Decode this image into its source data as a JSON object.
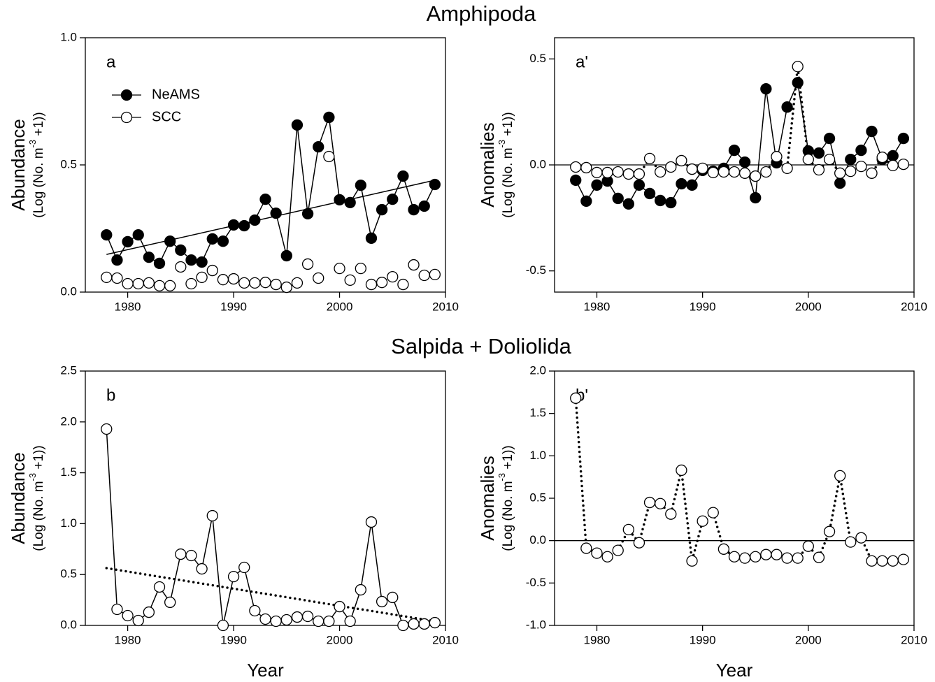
{
  "section_titles": [
    "Amphipoda",
    "Salpida + Doliolida"
  ],
  "chart_data": [
    {
      "type": "line",
      "panel_label": "a",
      "ylabel": "Abundance",
      "ylabel_note": {
        "before": "(Log (No. m",
        "sup": "-3",
        "after": " +1))"
      },
      "x": [
        1978,
        1979,
        1980,
        1981,
        1982,
        1983,
        1984,
        1985,
        1986,
        1987,
        1988,
        1989,
        1990,
        1991,
        1992,
        1993,
        1994,
        1995,
        1996,
        1997,
        1998,
        1999,
        2000,
        2001,
        2002,
        2003,
        2004,
        2005,
        2006,
        2007,
        2008,
        2009
      ],
      "xlim": [
        1976,
        2010
      ],
      "xticks": [
        1980,
        1990,
        2000,
        2010
      ],
      "ylim": [
        0,
        1
      ],
      "yticks": [
        {
          "value": 0,
          "label": "0.0"
        },
        0.5,
        {
          "value": 1,
          "label": "1.0"
        }
      ],
      "legend": "upper left",
      "series": [
        {
          "name": "NeAMS",
          "marker": "filled",
          "line": "solid",
          "color": "#000000",
          "values": [
            0.225,
            0.126,
            0.198,
            0.225,
            0.137,
            0.113,
            0.2,
            0.165,
            0.126,
            0.118,
            0.209,
            0.2,
            0.264,
            0.261,
            0.283,
            0.365,
            0.31,
            0.143,
            0.657,
            0.308,
            0.571,
            0.687,
            0.363,
            0.352,
            0.42,
            0.212,
            0.324,
            0.365,
            0.456,
            0.324,
            0.338,
            0.423
          ]
        },
        {
          "name": "SCC",
          "marker": "open",
          "line": "none",
          "color": "#000000",
          "values": [
            0.058,
            0.055,
            0.033,
            0.033,
            0.036,
            0.025,
            0.025,
            0.099,
            0.033,
            0.058,
            0.085,
            0.049,
            0.052,
            0.036,
            0.036,
            0.038,
            0.03,
            0.019,
            0.036,
            0.11,
            0.055,
            0.533,
            0.093,
            0.047,
            0.093,
            0.03,
            0.038,
            0.06,
            0.03,
            0.107,
            0.066,
            0.069
          ]
        }
      ],
      "trend": {
        "x": [
          1978,
          2009
        ],
        "values": [
          0.148,
          0.44
        ],
        "line": "solid"
      }
    },
    {
      "type": "line",
      "panel_label": "a'",
      "ylabel": "Anomalies",
      "ylabel_note": {
        "before": "(Log (No. m",
        "sup": "-3",
        "after": " +1))"
      },
      "x": [
        1978,
        1979,
        1980,
        1981,
        1982,
        1983,
        1984,
        1985,
        1986,
        1987,
        1988,
        1989,
        1990,
        1991,
        1992,
        1993,
        1994,
        1995,
        1996,
        1997,
        1998,
        1999,
        2000,
        2001,
        2002,
        2003,
        2004,
        2005,
        2006,
        2007,
        2008,
        2009
      ],
      "xlim": [
        1976,
        2010
      ],
      "xticks": [
        1980,
        1990,
        2000,
        2010
      ],
      "ylim": [
        -0.6,
        0.6
      ],
      "yticks": [
        -0.5,
        {
          "value": 0,
          "label": "0.0"
        },
        0.5
      ],
      "hline": 0,
      "series": [
        {
          "marker": "filled",
          "line": "solid",
          "color": "#000000",
          "values": [
            -0.072,
            -0.171,
            -0.095,
            -0.076,
            -0.158,
            -0.184,
            -0.095,
            -0.135,
            -0.168,
            -0.178,
            -0.089,
            -0.095,
            -0.026,
            -0.03,
            -0.016,
            0.069,
            0.013,
            -0.155,
            0.359,
            0.01,
            0.273,
            0.388,
            0.066,
            0.056,
            0.125,
            -0.086,
            0.026,
            0.069,
            0.158,
            0.026,
            0.043,
            0.125
          ]
        },
        {
          "marker": "open",
          "line": "dotted",
          "color": "#000000",
          "values": [
            -0.01,
            -0.013,
            -0.036,
            -0.036,
            -0.033,
            -0.043,
            -0.043,
            0.03,
            -0.033,
            -0.01,
            0.02,
            -0.02,
            -0.016,
            -0.036,
            -0.033,
            -0.033,
            -0.039,
            -0.053,
            -0.033,
            0.039,
            -0.016,
            0.464,
            0.026,
            -0.023,
            0.026,
            -0.039,
            -0.03,
            -0.007,
            -0.039,
            0.036,
            -0.003,
            0.003
          ]
        }
      ]
    },
    {
      "type": "line",
      "panel_label": "b",
      "ylabel": "Abundance",
      "ylabel_note": {
        "before": "(Log (No. m",
        "sup": "-3",
        "after": " +1))"
      },
      "xlabel": "Year",
      "x": [
        1978,
        1979,
        1980,
        1981,
        1982,
        1983,
        1984,
        1985,
        1986,
        1987,
        1988,
        1989,
        1990,
        1991,
        1992,
        1993,
        1994,
        1995,
        1996,
        1997,
        1998,
        1999,
        2000,
        2001,
        2002,
        2003,
        2004,
        2005,
        2006,
        2007,
        2008,
        2009
      ],
      "xlim": [
        1976,
        2010
      ],
      "xticks": [
        1980,
        1990,
        2000,
        2010
      ],
      "ylim": [
        0,
        2.5
      ],
      "yticks": [
        {
          "value": 0,
          "label": "0.0"
        },
        0.5,
        {
          "value": 1,
          "label": "1.0"
        },
        1.5,
        {
          "value": 2,
          "label": "2.0"
        },
        2.5
      ],
      "series": [
        {
          "marker": "open",
          "line": "solid",
          "color": "#000000",
          "values": [
            1.93,
            0.158,
            0.096,
            0.048,
            0.13,
            0.378,
            0.227,
            0.7,
            0.687,
            0.556,
            1.078,
            0,
            0.48,
            0.57,
            0.144,
            0.062,
            0.041,
            0.055,
            0.082,
            0.089,
            0.041,
            0.041,
            0.185,
            0.041,
            0.35,
            1.016,
            0.234,
            0.275,
            0,
            0.014,
            0.014,
            0.027
          ]
        }
      ],
      "trend": {
        "x": [
          1978,
          2009
        ],
        "values": [
          0.563,
          0.041
        ],
        "line": "dotted"
      }
    },
    {
      "type": "line",
      "panel_label": "b'",
      "ylabel": "Anomalies",
      "ylabel_note": {
        "before": "(Log (No. m",
        "sup": "-3",
        "after": " +1))"
      },
      "xlabel": "Year",
      "x": [
        1978,
        1979,
        1980,
        1981,
        1982,
        1983,
        1984,
        1985,
        1986,
        1987,
        1988,
        1989,
        1990,
        1991,
        1992,
        1993,
        1994,
        1995,
        1996,
        1997,
        1998,
        1999,
        2000,
        2001,
        2002,
        2003,
        2004,
        2005,
        2006,
        2007,
        2008,
        2009
      ],
      "xlim": [
        1976,
        2010
      ],
      "xticks": [
        1980,
        1990,
        2000,
        2010
      ],
      "ylim": [
        -1,
        2
      ],
      "yticks": [
        {
          "value": -1,
          "label": "-1.0"
        },
        -0.5,
        {
          "value": 0,
          "label": "0.0"
        },
        0.5,
        {
          "value": 1,
          "label": "1.0"
        },
        1.5,
        {
          "value": 2,
          "label": "2.0"
        }
      ],
      "hline": 0,
      "series": [
        {
          "marker": "open",
          "line": "dotted",
          "color": "#000000",
          "values": [
            1.68,
            -0.09,
            -0.148,
            -0.19,
            -0.115,
            0.13,
            -0.025,
            0.45,
            0.436,
            0.313,
            0.83,
            -0.24,
            0.23,
            0.33,
            -0.1,
            -0.19,
            -0.206,
            -0.19,
            -0.165,
            -0.165,
            -0.206,
            -0.206,
            -0.066,
            -0.198,
            0.107,
            0.765,
            -0.016,
            0.033,
            -0.24,
            -0.24,
            -0.24,
            -0.222
          ]
        }
      ]
    }
  ]
}
